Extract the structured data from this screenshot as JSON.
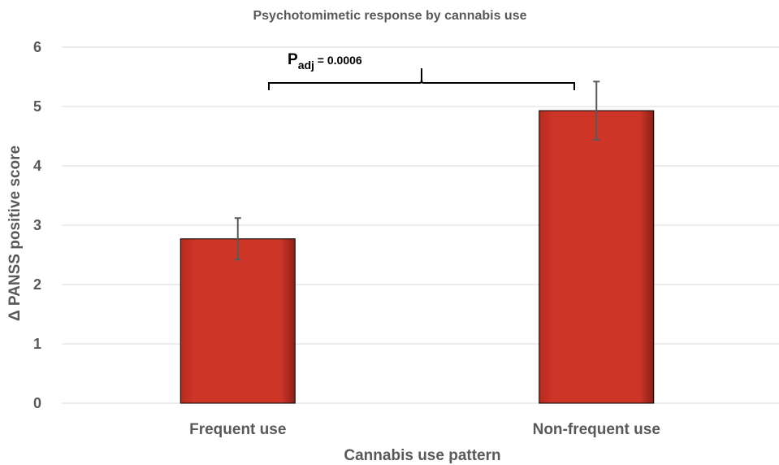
{
  "chart_data": {
    "type": "bar",
    "title": "Psychotomimetic response by cannabis use",
    "xlabel": "Cannabis use pattern",
    "ylabel": "Δ PANSS positive score",
    "ylim": [
      0,
      6
    ],
    "yticks": [
      "0",
      "1",
      "2",
      "3",
      "4",
      "5",
      "6"
    ],
    "grid": true,
    "categories": [
      "Frequent use",
      "Non-frequent use"
    ],
    "values": [
      2.77,
      4.93
    ],
    "error_low": [
      2.42,
      4.44
    ],
    "error_high": [
      3.12,
      5.42
    ],
    "bar_color": "#cd3527",
    "annotation": {
      "p_letter": "P",
      "p_subscript": "adj",
      "p_value": " = 0.0006"
    }
  }
}
